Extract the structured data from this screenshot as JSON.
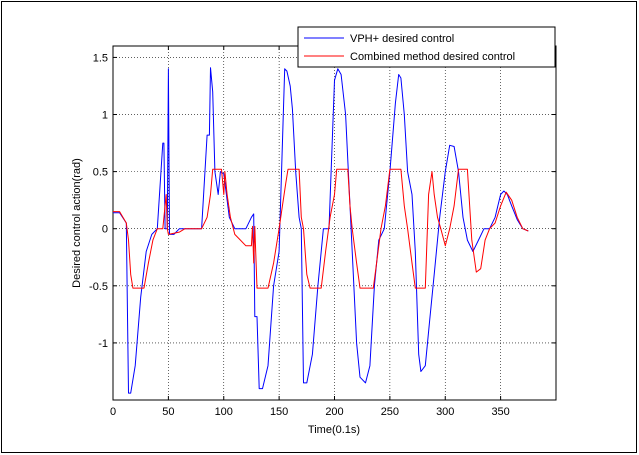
{
  "chart_data": {
    "type": "line",
    "title": "",
    "xlabel": "Time(0.1s)",
    "ylabel": "Desired control action(rad)",
    "xlim": [
      0,
      400
    ],
    "ylim": [
      -1.5,
      1.6
    ],
    "xticks": [
      0,
      50,
      100,
      150,
      200,
      250,
      300,
      350
    ],
    "yticks": [
      -1,
      -0.5,
      0,
      0.5,
      1,
      1.5
    ],
    "grid": true,
    "legend": "top-right",
    "series": [
      {
        "name": "VPH+ desired control",
        "color": "#0000ff",
        "points": [
          [
            0,
            0.14
          ],
          [
            6,
            0.14
          ],
          [
            12,
            0.05
          ],
          [
            14,
            -1.44
          ],
          [
            16,
            -1.44
          ],
          [
            20,
            -1.2
          ],
          [
            25,
            -0.6
          ],
          [
            30,
            -0.2
          ],
          [
            35,
            -0.05
          ],
          [
            40,
            0
          ],
          [
            45,
            0.75
          ],
          [
            46,
            0.75
          ],
          [
            47,
            0
          ],
          [
            49,
            0
          ],
          [
            50,
            1.4
          ],
          [
            51,
            -0.05
          ],
          [
            55,
            -0.05
          ],
          [
            60,
            0
          ],
          [
            80,
            0
          ],
          [
            85,
            0.82
          ],
          [
            87,
            0.82
          ],
          [
            88,
            1.41
          ],
          [
            90,
            1.2
          ],
          [
            92,
            0.5
          ],
          [
            95,
            0.3
          ],
          [
            97,
            0.5
          ],
          [
            100,
            0.48
          ],
          [
            105,
            0.1
          ],
          [
            110,
            0
          ],
          [
            120,
            0
          ],
          [
            125,
            0.1
          ],
          [
            127,
            0.13
          ],
          [
            128,
            -0.77
          ],
          [
            130,
            -0.77
          ],
          [
            132,
            -1.4
          ],
          [
            135,
            -1.4
          ],
          [
            140,
            -1.2
          ],
          [
            145,
            -0.5
          ],
          [
            150,
            -0.2
          ],
          [
            155,
            1.4
          ],
          [
            157,
            1.38
          ],
          [
            160,
            1.25
          ],
          [
            162,
            1.05
          ],
          [
            165,
            0.5
          ],
          [
            168,
            0.1
          ],
          [
            170,
            0
          ],
          [
            172,
            -1.35
          ],
          [
            175,
            -1.35
          ],
          [
            180,
            -1.1
          ],
          [
            185,
            -0.5
          ],
          [
            190,
            0
          ],
          [
            195,
            0
          ],
          [
            200,
            1.3
          ],
          [
            203,
            1.4
          ],
          [
            206,
            1.35
          ],
          [
            210,
            1.0
          ],
          [
            213,
            0.4
          ],
          [
            216,
            -0.2
          ],
          [
            220,
            -1.0
          ],
          [
            223,
            -1.3
          ],
          [
            228,
            -1.35
          ],
          [
            232,
            -1.2
          ],
          [
            236,
            -0.5
          ],
          [
            240,
            -0.1
          ],
          [
            245,
            0
          ],
          [
            250,
            0.5
          ],
          [
            255,
            1.1
          ],
          [
            258,
            1.35
          ],
          [
            260,
            1.32
          ],
          [
            263,
            1.0
          ],
          [
            266,
            0.5
          ],
          [
            270,
            0.3
          ],
          [
            273,
            -0.2
          ],
          [
            276,
            -1.1
          ],
          [
            278,
            -1.25
          ],
          [
            282,
            -1.2
          ],
          [
            286,
            -0.8
          ],
          [
            290,
            -0.4
          ],
          [
            295,
            0.1
          ],
          [
            300,
            0.5
          ],
          [
            304,
            0.73
          ],
          [
            308,
            0.72
          ],
          [
            312,
            0.5
          ],
          [
            316,
            0.1
          ],
          [
            320,
            -0.1
          ],
          [
            325,
            -0.2
          ],
          [
            330,
            -0.1
          ],
          [
            335,
            0
          ],
          [
            340,
            0
          ],
          [
            345,
            0.1
          ],
          [
            350,
            0.3
          ],
          [
            353,
            0.33
          ],
          [
            356,
            0.3
          ],
          [
            360,
            0.2
          ],
          [
            365,
            0.08
          ],
          [
            370,
            0
          ],
          [
            375,
            -0.02
          ]
        ]
      },
      {
        "name": "Combined method desired control",
        "color": "#ff0000",
        "points": [
          [
            0,
            0.15
          ],
          [
            6,
            0.15
          ],
          [
            12,
            0.05
          ],
          [
            14,
            -0.1
          ],
          [
            16,
            -0.4
          ],
          [
            18,
            -0.52
          ],
          [
            28,
            -0.52
          ],
          [
            32,
            -0.3
          ],
          [
            36,
            -0.1
          ],
          [
            40,
            0
          ],
          [
            45,
            0
          ],
          [
            48,
            0.3
          ],
          [
            49,
            0
          ],
          [
            50,
            -0.05
          ],
          [
            60,
            -0.03
          ],
          [
            65,
            0
          ],
          [
            80,
            0
          ],
          [
            85,
            0.1
          ],
          [
            88,
            0.3
          ],
          [
            90,
            0.52
          ],
          [
            98,
            0.52
          ],
          [
            100,
            0.3
          ],
          [
            101,
            0.5
          ],
          [
            103,
            0.3
          ],
          [
            106,
            0.1
          ],
          [
            110,
            -0.05
          ],
          [
            115,
            -0.1
          ],
          [
            120,
            -0.15
          ],
          [
            125,
            -0.15
          ],
          [
            126,
            0.02
          ],
          [
            127,
            -0.3
          ],
          [
            128,
            0.02
          ],
          [
            130,
            -0.52
          ],
          [
            140,
            -0.52
          ],
          [
            145,
            -0.3
          ],
          [
            150,
            0
          ],
          [
            153,
            0.2
          ],
          [
            156,
            0.4
          ],
          [
            158,
            0.52
          ],
          [
            168,
            0.52
          ],
          [
            170,
            0.1
          ],
          [
            172,
            0
          ],
          [
            175,
            -0.4
          ],
          [
            178,
            -0.52
          ],
          [
            188,
            -0.52
          ],
          [
            192,
            -0.2
          ],
          [
            196,
            0.1
          ],
          [
            200,
            0.3
          ],
          [
            202,
            0.52
          ],
          [
            212,
            0.52
          ],
          [
            214,
            0.2
          ],
          [
            216,
            0
          ],
          [
            220,
            -0.3
          ],
          [
            223,
            -0.52
          ],
          [
            235,
            -0.52
          ],
          [
            238,
            -0.3
          ],
          [
            242,
            0
          ],
          [
            246,
            0.2
          ],
          [
            250,
            0.52
          ],
          [
            260,
            0.52
          ],
          [
            263,
            0.2
          ],
          [
            266,
            0
          ],
          [
            270,
            -0.3
          ],
          [
            273,
            -0.52
          ],
          [
            282,
            -0.52
          ],
          [
            285,
            0.3
          ],
          [
            288,
            0.5
          ],
          [
            290,
            0.3
          ],
          [
            293,
            0.1
          ],
          [
            296,
            0
          ],
          [
            300,
            -0.15
          ],
          [
            304,
            0
          ],
          [
            308,
            0.2
          ],
          [
            312,
            0.52
          ],
          [
            320,
            0.52
          ],
          [
            324,
            -0.1
          ],
          [
            328,
            -0.38
          ],
          [
            332,
            -0.35
          ],
          [
            336,
            -0.1
          ],
          [
            340,
            0
          ],
          [
            345,
            0.05
          ],
          [
            350,
            0.2
          ],
          [
            355,
            0.32
          ],
          [
            360,
            0.25
          ],
          [
            365,
            0.1
          ],
          [
            370,
            0
          ],
          [
            375,
            -0.02
          ]
        ]
      }
    ]
  }
}
